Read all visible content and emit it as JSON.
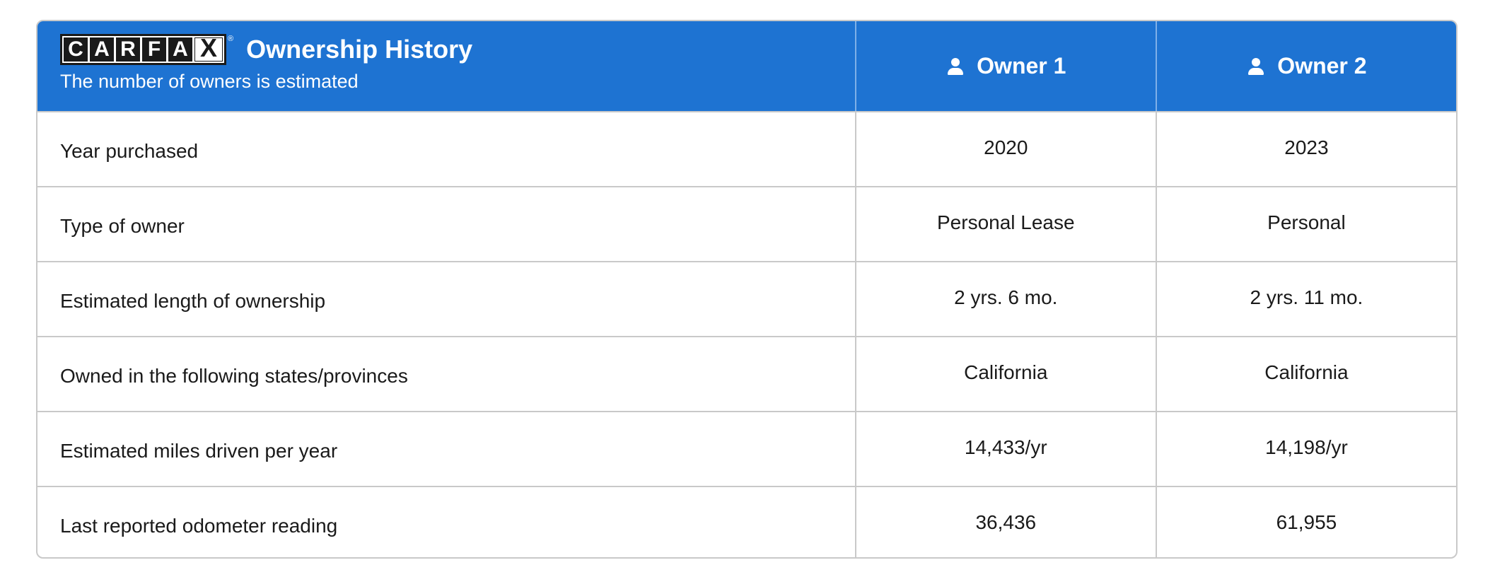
{
  "header": {
    "logo_letters": [
      "C",
      "A",
      "R",
      "F",
      "A",
      "X"
    ],
    "logo_registered": "®",
    "title": "Ownership History",
    "subtitle": "The number of owners is estimated",
    "owner_icon": "person-icon",
    "owners": [
      "Owner 1",
      "Owner 2"
    ],
    "background_color": "#1e73d2"
  },
  "rows": [
    {
      "label": "Year purchased",
      "owner1": "2020",
      "owner2": "2023"
    },
    {
      "label": "Type of owner",
      "owner1": "Personal Lease",
      "owner2": "Personal"
    },
    {
      "label": "Estimated length of ownership",
      "owner1": "2 yrs. 6 mo.",
      "owner2": "2 yrs. 11 mo."
    },
    {
      "label": "Owned in the following states/provinces",
      "owner1": "California",
      "owner2": "California"
    },
    {
      "label": "Estimated miles driven per year",
      "owner1": "14,433/yr",
      "owner2": "14,198/yr"
    },
    {
      "label": "Last reported odometer reading",
      "owner1": "36,436",
      "owner2": "61,955"
    }
  ]
}
